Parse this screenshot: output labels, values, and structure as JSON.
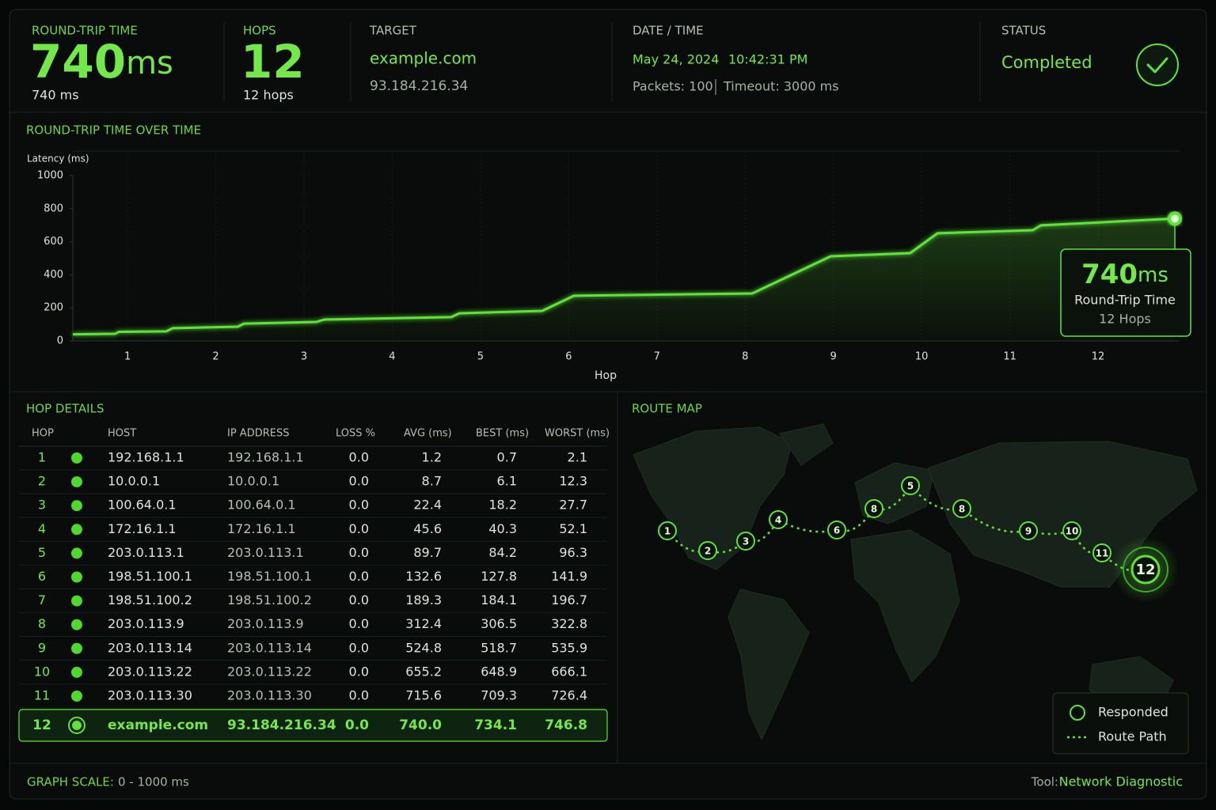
{
  "header": {
    "rtt": {
      "label": "ROUND-TRIP TIME",
      "value": "740",
      "unit": "ms",
      "detail": "740 ms"
    },
    "hops": {
      "label": "HOPS",
      "value": "12",
      "detail": "12 hops"
    },
    "target": {
      "label": "TARGET",
      "host": "example.com",
      "ip": "93.184.216.34"
    },
    "datetime": {
      "label": "DATE / TIME",
      "date": "May 24, 2024",
      "time": "10:42:31 PM",
      "packets": "Packets: 100",
      "timeout": "Timeout: 3000 ms"
    },
    "status": {
      "label": "STATUS",
      "value": "Completed"
    }
  },
  "chart_data": {
    "type": "line",
    "title": "ROUND-TRIP TIME OVER TIME",
    "y_label": "Latency (ms)",
    "x_label": "Hop",
    "x": [
      0.38,
      0.86,
      0.9,
      1.44,
      1.51,
      2.25,
      2.32,
      3.14,
      3.23,
      4.67,
      4.76,
      5.7,
      6.06,
      8.08,
      8.97,
      9.87,
      10.18,
      11.26,
      11.35,
      12.87
    ],
    "values": [
      40,
      43,
      55,
      58,
      77,
      86,
      105,
      115,
      129,
      144,
      167,
      182,
      273,
      287,
      512,
      531,
      651,
      670,
      699,
      740
    ],
    "color": "#5fe33a",
    "xlim": [
      0.38,
      12.87
    ],
    "ylim": [
      0,
      1000
    ],
    "xticks": [
      1,
      2,
      3,
      4,
      5,
      6,
      7,
      8,
      9,
      10,
      11,
      12
    ],
    "yticks": [
      0,
      200,
      400,
      600,
      800,
      1000
    ],
    "grid": true,
    "annotation": {
      "value": "740",
      "unit": "ms",
      "label": "Round-Trip Time",
      "detail": "12 Hops"
    }
  },
  "hop_details": {
    "title": "HOP DETAILS",
    "columns": [
      "HOP",
      "HOST",
      "IP ADDRESS",
      "LOSS %",
      "AVG (ms)",
      "BEST (ms)",
      "WORST (ms)"
    ],
    "rows": [
      [
        "1",
        "192.168.1.1",
        "192.168.1.1",
        "0.0",
        "1.2",
        "0.7",
        "2.1"
      ],
      [
        "2",
        "10.0.0.1",
        "10.0.0.1",
        "0.0",
        "8.7",
        "6.1",
        "12.3"
      ],
      [
        "3",
        "100.64.0.1",
        "100.64.0.1",
        "0.0",
        "22.4",
        "18.2",
        "27.7"
      ],
      [
        "4",
        "172.16.1.1",
        "172.16.1.1",
        "0.0",
        "45.6",
        "40.3",
        "52.1"
      ],
      [
        "5",
        "203.0.113.1",
        "203.0.113.1",
        "0.0",
        "89.7",
        "84.2",
        "96.3"
      ],
      [
        "6",
        "198.51.100.1",
        "198.51.100.1",
        "0.0",
        "132.6",
        "127.8",
        "141.9"
      ],
      [
        "7",
        "198.51.100.2",
        "198.51.100.2",
        "0.0",
        "189.3",
        "184.1",
        "196.7"
      ],
      [
        "8",
        "203.0.113.9",
        "203.0.113.9",
        "0.0",
        "312.4",
        "306.5",
        "322.8"
      ],
      [
        "9",
        "203.0.113.14",
        "203.0.113.14",
        "0.0",
        "524.8",
        "518.7",
        "535.9"
      ],
      [
        "10",
        "203.0.113.22",
        "203.0.113.22",
        "0.0",
        "655.2",
        "648.9",
        "666.1"
      ],
      [
        "11",
        "203.0.113.30",
        "203.0.113.30",
        "0.0",
        "715.6",
        "709.3",
        "726.4"
      ],
      [
        "12",
        "example.com",
        "93.184.216.34",
        "0.0",
        "740.0",
        "734.1",
        "746.8"
      ]
    ]
  },
  "route_map": {
    "title": "ROUTE MAP",
    "nodes": [
      "1",
      "2",
      "3",
      "4",
      "6",
      "8",
      "5",
      "8",
      "9",
      "10",
      "11",
      "12"
    ],
    "legend": [
      "Responded",
      "Route Path"
    ]
  },
  "footer": {
    "scale_label": "GRAPH SCALE:",
    "scale_value": "0 - 1000 ms",
    "tool_label": "Tool:",
    "tool_value": "Network Diagnostic"
  }
}
